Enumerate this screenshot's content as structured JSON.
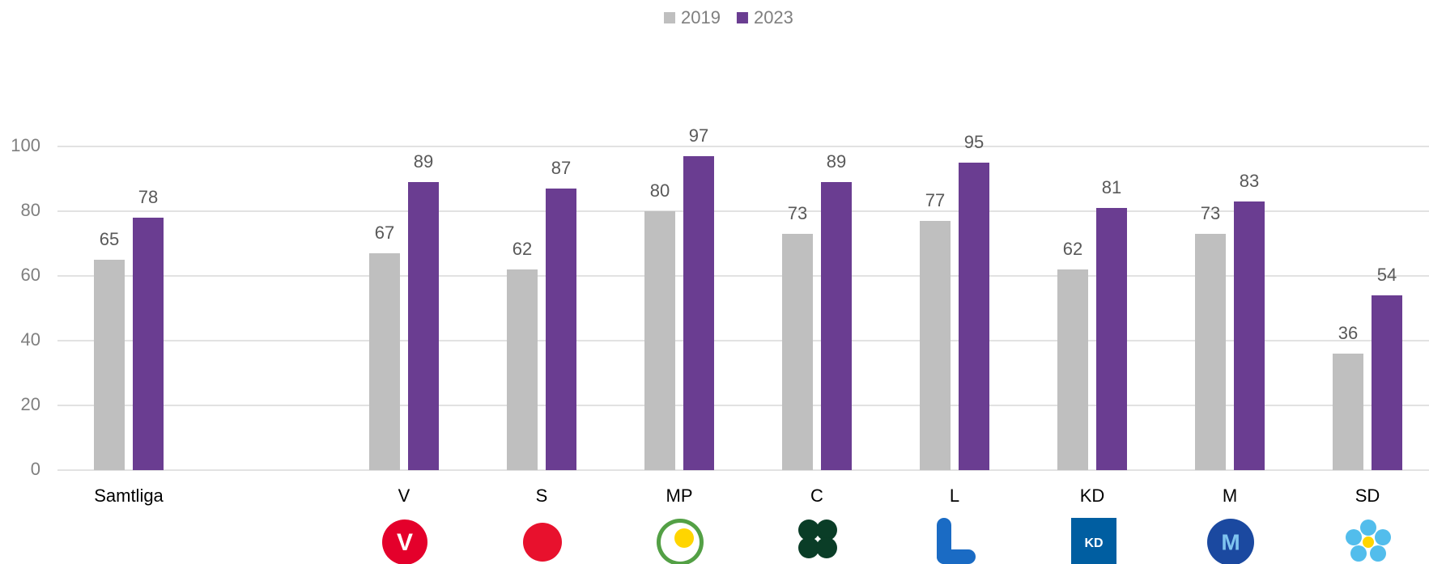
{
  "chart_data": {
    "type": "bar",
    "categories": [
      "Samtliga",
      null,
      "V",
      "S",
      "MP",
      "C",
      "L",
      "KD",
      "M",
      "SD"
    ],
    "series": [
      {
        "name": "2019",
        "color": "#bfbfbf",
        "values": [
          65,
          null,
          67,
          62,
          80,
          73,
          77,
          62,
          73,
          36
        ]
      },
      {
        "name": "2023",
        "color": "#6a3d91",
        "values": [
          78,
          null,
          89,
          87,
          97,
          89,
          95,
          81,
          83,
          54
        ]
      }
    ],
    "ylim": [
      0,
      100
    ],
    "yticks": [
      0,
      20,
      40,
      60,
      80,
      100
    ],
    "grid": true,
    "legend": "top"
  }
}
